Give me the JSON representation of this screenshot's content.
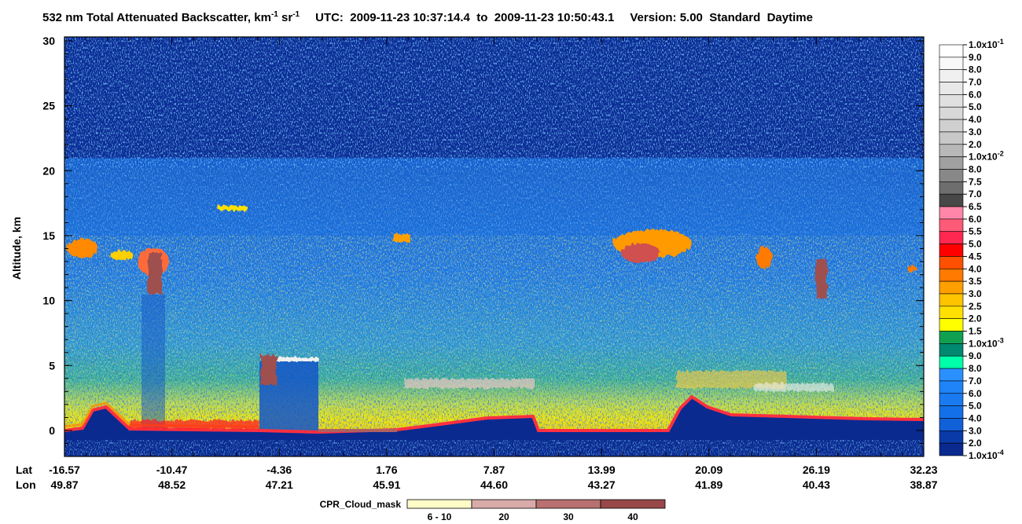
{
  "chart_data": {
    "type": "curtain",
    "title": {
      "main": "532 nm Total Attenuated Backscatter, km",
      "exp1": "-1",
      "unit2": " sr",
      "exp2": "-1",
      "time": "UTC:  2009-11-23 10:37:14.4  to  2009-11-23 10:50:43.1",
      "version": "Version: 5.00  Standard  Daytime"
    },
    "ylabel": "Altitude, km",
    "ylim": [
      -2,
      30
    ],
    "yticks": [
      0,
      5,
      10,
      15,
      20,
      25,
      30
    ],
    "x_rows": [
      {
        "name": "Lat",
        "labels": [
          "-16.57",
          "-10.47",
          "-4.36",
          "1.76",
          "7.87",
          "13.99",
          "20.09",
          "26.19",
          "32.23"
        ]
      },
      {
        "name": "Lon",
        "labels": [
          "49.87",
          "48.52",
          "47.21",
          "45.91",
          "44.60",
          "43.27",
          "41.89",
          "40.43",
          "38.87"
        ]
      }
    ],
    "colorbar": {
      "labels": [
        {
          "text": "1.0x10",
          "sup": "-1"
        },
        "9.0",
        "8.0",
        "7.0",
        "6.0",
        "5.0",
        "4.0",
        "3.0",
        "2.0",
        {
          "text": "1.0x10",
          "sup": "-2"
        },
        "8.0",
        "7.5",
        "7.0",
        "6.5",
        "6.0",
        "5.5",
        "5.0",
        "4.5",
        "4.0",
        "3.5",
        "3.0",
        "2.5",
        "2.0",
        "1.5",
        {
          "text": "1.0x10",
          "sup": "-3"
        },
        "9.0",
        "8.0",
        "7.0",
        "6.0",
        "5.0",
        "4.0",
        "3.0",
        "2.0",
        {
          "text": "1.0x10",
          "sup": "-4"
        }
      ],
      "colors": [
        "#ffffff",
        "#f8f8f8",
        "#f0f0f0",
        "#e8e8e8",
        "#e0e0e0",
        "#d8d8d8",
        "#d0d0d0",
        "#c8c8c8",
        "#b8b8b8",
        "#a0a0a0",
        "#888888",
        "#6e6e6e",
        "#484848",
        "#ff86a8",
        "#ff5a78",
        "#ff2850",
        "#ff0000",
        "#ff5000",
        "#ff7a00",
        "#ffa000",
        "#ffc400",
        "#ffe000",
        "#ffff00",
        "#10a050",
        "#008870",
        "#00ffaa",
        "#2a90ff",
        "#1e84f8",
        "#1a7af0",
        "#1470e8",
        "#1060d8",
        "#0a3aa8",
        "#0a2a90"
      ]
    },
    "cloud_mask": {
      "title": "CPR_Cloud_mask",
      "labels": [
        "6 - 10",
        "20",
        "30",
        "40"
      ],
      "colors": [
        "#fffcc8",
        "#d8aaa8",
        "#b87070",
        "#984848"
      ]
    }
  }
}
